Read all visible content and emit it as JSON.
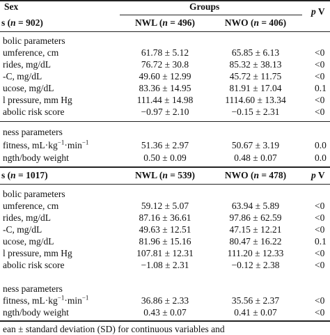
{
  "header": {
    "sex_label": "Sex",
    "groups_label": "Groups",
    "p_label": "p V"
  },
  "sections": [
    {
      "n_label": "= 902)",
      "nwl_label": "NWL (n = 496)",
      "nwo_label": "NWO (n = 406)",
      "p_label": "",
      "groups": [
        {
          "title": "bolic parameters",
          "rows": [
            {
              "label": "umference, cm",
              "nwl": "61.78 ± 5.12",
              "nwo": "65.85 ± 6.13",
              "p": "<0"
            },
            {
              "label": "rides, mg/dL",
              "nwl": "76.72 ± 30.8",
              "nwo": "85.32 ± 38.13",
              "p": "<0"
            },
            {
              "label": "-C, mg/dL",
              "nwl": "49.60 ± 12.99",
              "nwo": "45.72 ± 11.75",
              "p": "<0"
            },
            {
              "label": "ucose, mg/dL",
              "nwl": "83.36 ± 14.95",
              "nwo": "81.91 ± 17.04",
              "p": "0.1"
            },
            {
              "label": "l pressure, mm Hg",
              "nwl": "111.44 ± 14.98",
              "nwo": "1114.60 ± 13.34",
              "p": "<0"
            },
            {
              "label": "abolic risk score",
              "nwl": "−0.97 ± 2.10",
              "nwo": "−0.15 ± 2.31",
              "p": "<0"
            }
          ]
        },
        {
          "title": "ness parameters",
          "rows": [
            {
              "label": "fitness, mL·kg−1·min−1",
              "nwl": "51.36 ± 2.97",
              "nwo": "50.67 ± 3.19",
              "p": "0.0"
            },
            {
              "label": "ngth/body weight",
              "nwl": "0.50 ± 0.09",
              "nwo": "0.48 ± 0.07",
              "p": "0.0"
            }
          ]
        }
      ]
    },
    {
      "n_label": "= 1017)",
      "nwl_label": "NWL (n = 539)",
      "nwo_label": "NWO (n = 478)",
      "p_label": "p V",
      "groups": [
        {
          "title": "bolic parameters",
          "rows": [
            {
              "label": "umference, cm",
              "nwl": "59.12 ± 5.07",
              "nwo": "63.94 ± 5.89",
              "p": "<0"
            },
            {
              "label": "rides, mg/dL",
              "nwl": "87.16 ± 36.61",
              "nwo": "97.86 ± 62.59",
              "p": "<0"
            },
            {
              "label": "-C, mg/dL",
              "nwl": "49.63 ± 12.51",
              "nwo": "47.15 ± 12.21",
              "p": "<0"
            },
            {
              "label": "ucose, mg/dL",
              "nwl": "81.96 ± 15.16",
              "nwo": "80.47 ± 16.22",
              "p": "0.1"
            },
            {
              "label": "l pressure, mm Hg",
              "nwl": "107.81 ± 12.31",
              "nwo": "111.20 ± 12.33",
              "p": "<0"
            },
            {
              "label": "abolic risk score",
              "nwl": "−1.08 ± 2.31",
              "nwo": "−0.12 ± 2.38",
              "p": "<0"
            }
          ]
        },
        {
          "title": "ness parameters",
          "rows": [
            {
              "label": "fitness, mL·kg−1·min−1",
              "nwl": "36.86 ± 2.33",
              "nwo": "35.56 ± 2.37",
              "p": "<0"
            },
            {
              "label": "ngth/body weight",
              "nwl": "0.43 ± 0.07",
              "nwo": "0.41 ± 0.07",
              "p": "<0"
            }
          ]
        }
      ]
    }
  ],
  "footnote": "ean ± standard deviation (SD) for continuous variables and"
}
